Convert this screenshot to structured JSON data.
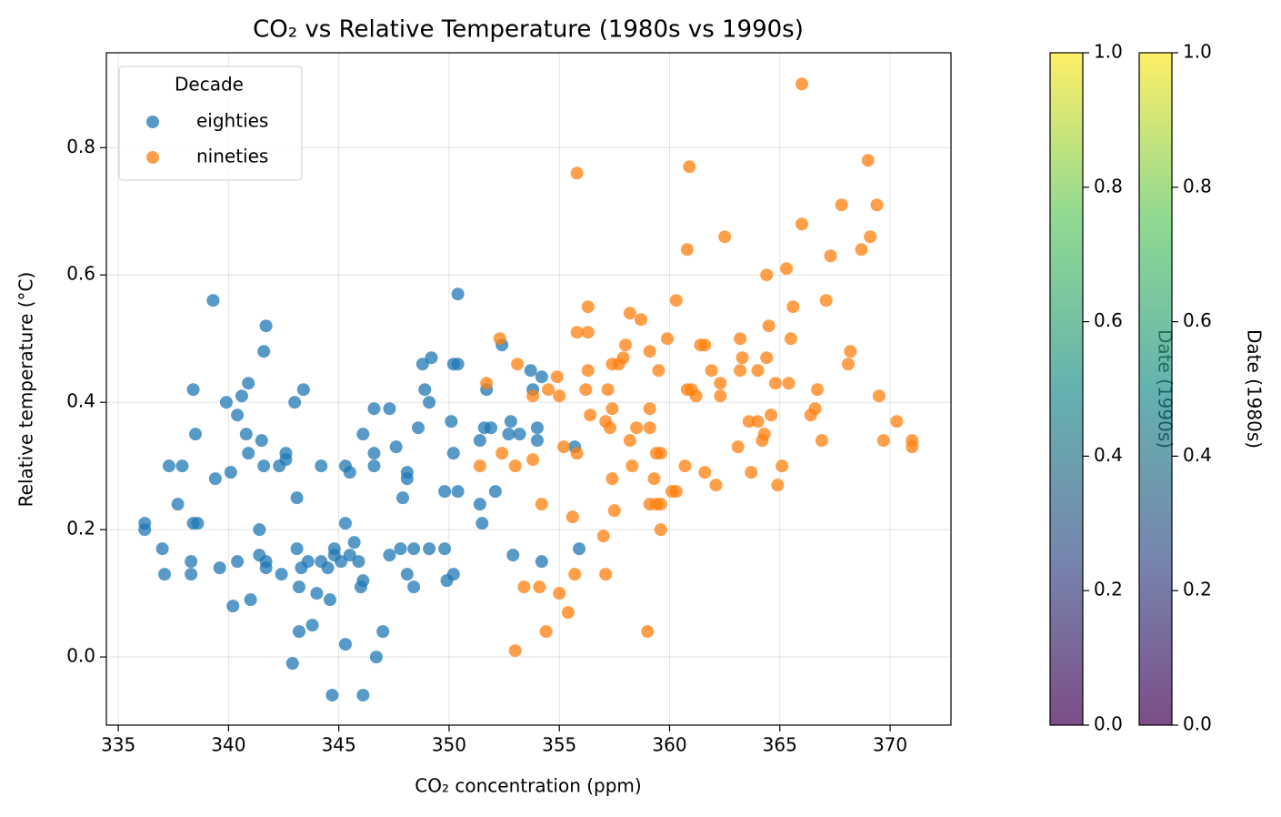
{
  "chart_data": {
    "type": "scatter",
    "title": "CO₂ vs Relative Temperature (1980s vs 1990s)",
    "x_label": "CO₂ concentration (ppm)",
    "y_label": "Relative temperature (°C)",
    "xlim": [
      334.46,
      372.76
    ],
    "ylim": [
      -0.107,
      0.949
    ],
    "xticks": [
      335,
      340,
      345,
      350,
      355,
      360,
      365,
      370
    ],
    "yticks": [
      {
        "value": 0,
        "label": "0.0"
      },
      0.2,
      0.4,
      0.6,
      0.8
    ],
    "grid": true,
    "legend_title": "Decade",
    "legend_position": "upper left",
    "series": [
      {
        "name": "eighties",
        "color": "#1f77b4",
        "x": [
          336.2,
          336.2,
          337.0,
          337.1,
          337.3,
          337.9,
          337.7,
          338.4,
          338.6,
          338.3,
          338.3,
          338.4,
          338.5,
          339.3,
          339.4,
          339.6,
          339.9,
          340.1,
          340.2,
          340.4,
          340.4,
          340.6,
          340.8,
          340.9,
          340.9,
          341.0,
          341.4,
          341.5,
          341.4,
          341.6,
          341.7,
          341.6,
          341.7,
          341.7,
          342.3,
          342.4,
          342.6,
          342.6,
          343.0,
          342.9,
          343.1,
          343.1,
          343.2,
          343.2,
          343.4,
          343.3,
          343.6,
          343.8,
          344.0,
          344.2,
          344.2,
          344.5,
          344.6,
          344.7,
          344.8,
          344.8,
          345.1,
          345.3,
          345.3,
          345.3,
          345.5,
          345.5,
          345.7,
          345.9,
          346.0,
          346.1,
          346.1,
          346.1,
          346.6,
          346.6,
          346.6,
          346.7,
          347.0,
          347.3,
          347.3,
          347.6,
          347.8,
          347.9,
          348.1,
          348.1,
          348.1,
          348.4,
          348.4,
          348.6,
          348.8,
          348.9,
          349.2,
          349.1,
          349.1,
          349.8,
          349.8,
          350.1,
          350.2,
          350.4,
          350.2,
          349.9,
          350.2,
          350.4,
          350.4,
          351.4,
          351.4,
          351.5,
          351.6,
          351.7,
          351.9,
          352.1,
          352.4,
          352.7,
          352.8,
          352.9,
          353.2,
          353.7,
          353.8,
          354.0,
          354.0,
          354.2,
          354.2,
          355.7,
          355.9
        ],
        "values": [
          0.21,
          0.2,
          0.17,
          0.13,
          0.3,
          0.3,
          0.24,
          0.21,
          0.21,
          0.15,
          0.13,
          0.42,
          0.35,
          0.56,
          0.28,
          0.14,
          0.4,
          0.29,
          0.08,
          0.38,
          0.15,
          0.41,
          0.35,
          0.43,
          0.32,
          0.09,
          0.2,
          0.34,
          0.16,
          0.3,
          0.52,
          0.48,
          0.15,
          0.14,
          0.3,
          0.13,
          0.32,
          0.31,
          0.4,
          -0.01,
          0.25,
          0.17,
          0.11,
          0.04,
          0.42,
          0.14,
          0.15,
          0.05,
          0.1,
          0.3,
          0.15,
          0.14,
          0.09,
          -0.06,
          0.16,
          0.17,
          0.15,
          0.21,
          0.3,
          0.02,
          0.29,
          0.16,
          0.18,
          0.15,
          0.11,
          0.35,
          0.12,
          -0.06,
          0.39,
          0.32,
          0.3,
          0.0,
          0.04,
          0.39,
          0.16,
          0.33,
          0.17,
          0.25,
          0.29,
          0.28,
          0.13,
          0.17,
          0.11,
          0.36,
          0.46,
          0.42,
          0.47,
          0.4,
          0.17,
          0.17,
          0.26,
          0.37,
          0.46,
          0.46,
          0.32,
          0.12,
          0.13,
          0.26,
          0.57,
          0.24,
          0.34,
          0.21,
          0.36,
          0.42,
          0.36,
          0.26,
          0.49,
          0.35,
          0.37,
          0.16,
          0.35,
          0.45,
          0.42,
          0.36,
          0.34,
          0.44,
          0.15,
          0.33,
          0.17
        ]
      },
      {
        "name": "nineties",
        "color": "#ff7f0e",
        "x": [
          351.4,
          351.7,
          352.3,
          352.4,
          353.1,
          353.0,
          353.0,
          353.4,
          353.8,
          353.8,
          354.1,
          354.2,
          354.4,
          354.5,
          354.9,
          355.0,
          355.0,
          355.2,
          355.4,
          355.6,
          355.7,
          355.8,
          355.8,
          355.8,
          356.2,
          356.3,
          356.3,
          356.3,
          356.4,
          357.0,
          357.1,
          357.1,
          357.2,
          357.3,
          357.4,
          357.4,
          357.4,
          357.5,
          357.7,
          357.9,
          358.0,
          358.2,
          358.2,
          358.3,
          358.5,
          358.7,
          359.0,
          359.1,
          359.1,
          359.1,
          359.1,
          359.3,
          359.4,
          359.4,
          359.5,
          359.6,
          359.6,
          359.6,
          359.9,
          360.1,
          360.3,
          360.3,
          360.7,
          360.8,
          360.9,
          360.8,
          361.0,
          361.2,
          361.4,
          361.6,
          361.6,
          361.9,
          362.1,
          362.3,
          362.3,
          362.5,
          363.1,
          363.2,
          363.2,
          363.3,
          363.6,
          363.7,
          364.0,
          364.0,
          364.2,
          364.3,
          364.4,
          364.4,
          364.5,
          364.6,
          364.8,
          364.9,
          365.1,
          365.3,
          365.4,
          365.5,
          365.6,
          366.0,
          366.0,
          366.4,
          366.6,
          366.7,
          366.9,
          367.1,
          367.3,
          367.8,
          368.1,
          368.2,
          368.7,
          369.0,
          369.1,
          369.4,
          369.5,
          369.7,
          370.3,
          371.0,
          371.0
        ],
        "values": [
          0.3,
          0.43,
          0.5,
          0.32,
          0.46,
          0.3,
          0.01,
          0.11,
          0.41,
          0.31,
          0.11,
          0.24,
          0.04,
          0.42,
          0.44,
          0.1,
          0.41,
          0.33,
          0.07,
          0.22,
          0.13,
          0.51,
          0.76,
          0.32,
          0.42,
          0.51,
          0.55,
          0.45,
          0.38,
          0.19,
          0.37,
          0.13,
          0.42,
          0.36,
          0.39,
          0.46,
          0.28,
          0.23,
          0.46,
          0.47,
          0.49,
          0.54,
          0.34,
          0.3,
          0.36,
          0.53,
          0.04,
          0.36,
          0.39,
          0.48,
          0.24,
          0.28,
          0.32,
          0.24,
          0.45,
          0.32,
          0.2,
          0.24,
          0.5,
          0.26,
          0.26,
          0.56,
          0.3,
          0.64,
          0.77,
          0.42,
          0.42,
          0.41,
          0.49,
          0.49,
          0.29,
          0.45,
          0.27,
          0.43,
          0.41,
          0.66,
          0.33,
          0.5,
          0.45,
          0.47,
          0.37,
          0.29,
          0.37,
          0.45,
          0.34,
          0.35,
          0.47,
          0.6,
          0.52,
          0.38,
          0.43,
          0.27,
          0.3,
          0.61,
          0.43,
          0.5,
          0.55,
          0.9,
          0.68,
          0.38,
          0.39,
          0.42,
          0.34,
          0.56,
          0.63,
          0.71,
          0.46,
          0.48,
          0.64,
          0.78,
          0.66,
          0.71,
          0.41,
          0.34,
          0.37,
          0.34,
          0.33
        ]
      }
    ],
    "colorbars": [
      {
        "label": "Date (1990s)",
        "lim": [
          0,
          1
        ],
        "ticks": [
          {
            "value": 0,
            "label": "0.0"
          },
          0.2,
          0.4,
          0.6,
          0.8,
          {
            "value": 1,
            "label": "1.0"
          }
        ],
        "colormap": [
          "#440154",
          "#3b528b",
          "#21918c",
          "#5ec962",
          "#fde725"
        ]
      },
      {
        "label": "Date (1980s)",
        "lim": [
          0,
          1
        ],
        "ticks": [
          {
            "value": 0,
            "label": "0.0"
          },
          0.2,
          0.4,
          0.6,
          0.8,
          {
            "value": 1,
            "label": "1.0"
          }
        ],
        "colormap": [
          "#440154",
          "#3b528b",
          "#21918c",
          "#5ec962",
          "#fde725"
        ]
      }
    ]
  }
}
